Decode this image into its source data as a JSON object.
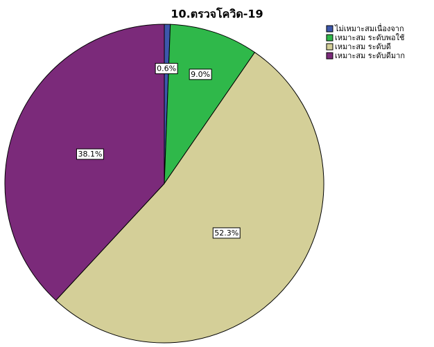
{
  "chart_data": {
    "type": "pie",
    "title": "10.ตรวจโควิด-19",
    "categories": [
      "ไม่เหมาะสมเนื่องจาก",
      "เหมาะสม ระดับพอใช้",
      "เหมาะสม ระดับดี",
      "เหมาะสม ระดับดีมาก"
    ],
    "values": [
      0.6,
      9.0,
      52.3,
      38.1
    ],
    "value_labels": [
      "0.6%",
      "9.0%",
      "52.3%",
      "38.1%"
    ],
    "colors": [
      "#3d57ab",
      "#2fb84a",
      "#d4cf98",
      "#7b2a7a"
    ],
    "legend": "top-right"
  }
}
